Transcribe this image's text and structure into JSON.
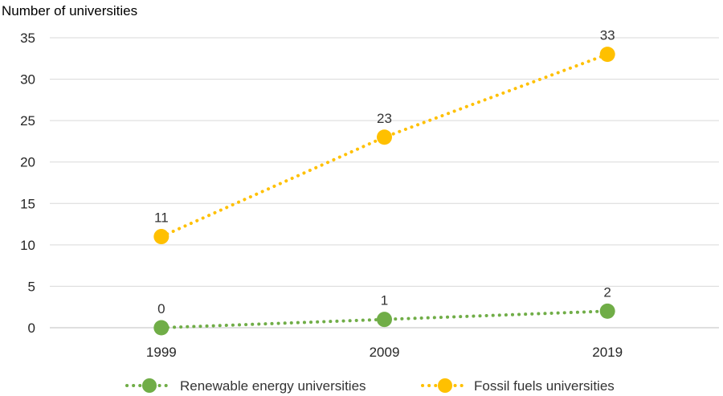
{
  "chart_data": {
    "type": "line",
    "title": "",
    "xlabel": "",
    "ylabel": "Number of universities",
    "categories": [
      "1999",
      "2009",
      "2019"
    ],
    "ylim": [
      0,
      35
    ],
    "yticks": [
      0,
      5,
      10,
      15,
      20,
      25,
      30,
      35
    ],
    "grid": true,
    "legend_position": "bottom",
    "series": [
      {
        "name": "Renewable energy universities",
        "values": [
          0,
          1,
          2
        ],
        "color": "#70AD47",
        "line_style": "dotted"
      },
      {
        "name": "Fossil fuels universities",
        "values": [
          11,
          23,
          33
        ],
        "color": "#FFC000",
        "line_style": "dotted"
      }
    ]
  }
}
